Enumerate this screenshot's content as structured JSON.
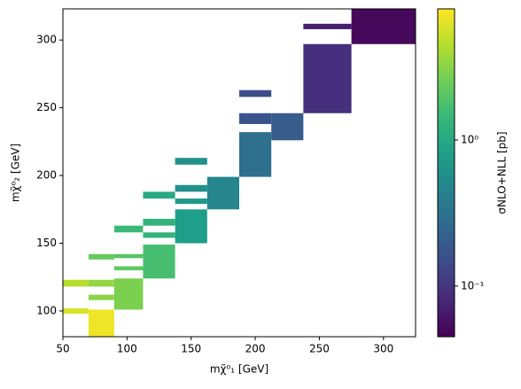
{
  "chart_data": {
    "type": "heatmap",
    "x_label": "mχ̃⁰₁ [GeV]",
    "y_label": "mχ̃⁰₂ [GeV]",
    "colorbar_label": "σNLO+NLL [pb]",
    "colormap": "viridis",
    "color_scale": "log",
    "xlim": [
      50,
      325
    ],
    "ylim": [
      81,
      323
    ],
    "xticks": [
      50,
      100,
      150,
      200,
      250,
      300
    ],
    "yticks": [
      100,
      150,
      200,
      250,
      300
    ],
    "clim": [
      0.045,
      7.9
    ],
    "cticks": [
      {
        "value": 0.1,
        "label": "10⁻¹"
      },
      {
        "value": 1,
        "label": "10⁰"
      }
    ],
    "cells": [
      {
        "x": [
          275,
          325
        ],
        "y": [
          297,
          323
        ],
        "value": 0.05
      },
      {
        "x": [
          237.5,
          275
        ],
        "y": [
          308,
          312
        ],
        "value": 0.07
      },
      {
        "x": [
          237.5,
          275
        ],
        "y": [
          246,
          297
        ],
        "value": 0.09
      },
      {
        "x": [
          187.5,
          212.5
        ],
        "y": [
          258,
          263
        ],
        "value": 0.15
      },
      {
        "x": [
          187.5,
          212.5
        ],
        "y": [
          238,
          246
        ],
        "value": 0.17
      },
      {
        "x": [
          212.5,
          237.5
        ],
        "y": [
          226,
          246
        ],
        "value": 0.2
      },
      {
        "x": [
          187.5,
          212.5
        ],
        "y": [
          199,
          232
        ],
        "value": 0.3
      },
      {
        "x": [
          162.5,
          187.5
        ],
        "y": [
          175,
          199
        ],
        "value": 0.5
      },
      {
        "x": [
          137.5,
          162.5
        ],
        "y": [
          208,
          213
        ],
        "value": 0.6
      },
      {
        "x": [
          137.5,
          162.5
        ],
        "y": [
          188,
          193
        ],
        "value": 0.6
      },
      {
        "x": [
          137.5,
          162.5
        ],
        "y": [
          179,
          183
        ],
        "value": 0.7
      },
      {
        "x": [
          137.5,
          162.5
        ],
        "y": [
          150,
          175
        ],
        "value": 0.8
      },
      {
        "x": [
          112.5,
          137.5
        ],
        "y": [
          183,
          188
        ],
        "value": 1.0
      },
      {
        "x": [
          112.5,
          137.5
        ],
        "y": [
          163,
          168
        ],
        "value": 1.3
      },
      {
        "x": [
          112.5,
          137.5
        ],
        "y": [
          154,
          158
        ],
        "value": 1.3
      },
      {
        "x": [
          112.5,
          137.5
        ],
        "y": [
          124,
          149
        ],
        "value": 1.7
      },
      {
        "x": [
          90,
          112.5
        ],
        "y": [
          158,
          163
        ],
        "value": 1.5
      },
      {
        "x": [
          90,
          112.5
        ],
        "y": [
          139,
          142
        ],
        "value": 2
      },
      {
        "x": [
          90,
          112.5
        ],
        "y": [
          130,
          133
        ],
        "value": 2.2
      },
      {
        "x": [
          90,
          112.5
        ],
        "y": [
          101,
          124
        ],
        "value": 2.8
      },
      {
        "x": [
          70,
          90
        ],
        "y": [
          138,
          142
        ],
        "value": 2.3
      },
      {
        "x": [
          50,
          70
        ],
        "y": [
          118,
          123
        ],
        "value": 4.5
      },
      {
        "x": [
          70,
          90
        ],
        "y": [
          118,
          123
        ],
        "value": 3.4
      },
      {
        "x": [
          70,
          90
        ],
        "y": [
          108,
          112
        ],
        "value": 3.2
      },
      {
        "x": [
          50,
          70
        ],
        "y": [
          98,
          102
        ],
        "value": 6
      },
      {
        "x": [
          70,
          90
        ],
        "y": [
          81,
          101
        ],
        "value": 7
      }
    ]
  }
}
